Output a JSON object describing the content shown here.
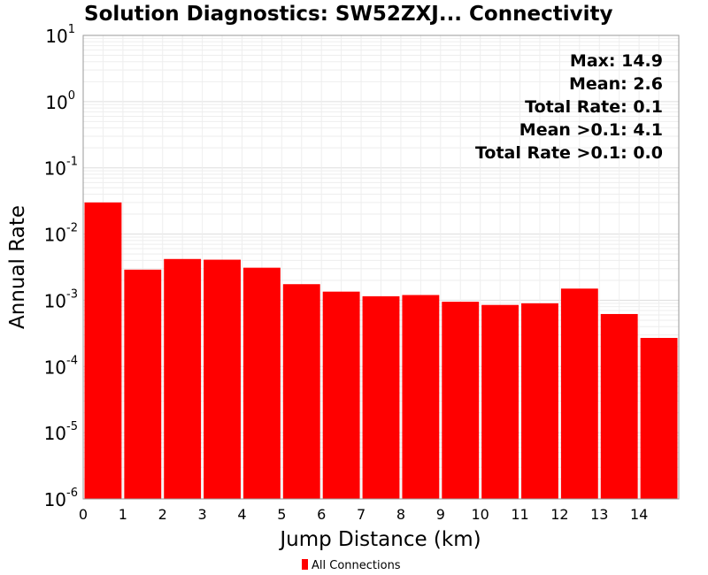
{
  "colors": {
    "bar": "#ff0000",
    "grid_major": "#dddddd",
    "grid_minor": "#eeeeee",
    "axis": "#999999"
  },
  "chart_data": {
    "type": "bar",
    "title": "Solution Diagnostics: SW52ZXJ... Connectivity",
    "xlabel": "Jump Distance (km)",
    "ylabel": "Annual Rate",
    "yscale": "log",
    "ylim": [
      1e-06,
      10
    ],
    "xlim": [
      0,
      15
    ],
    "grid": true,
    "x_ticks": [
      "0",
      "1",
      "2",
      "3",
      "4",
      "5",
      "6",
      "7",
      "8",
      "9",
      "10",
      "11",
      "12",
      "13",
      "14"
    ],
    "y_ticks": [
      {
        "base": "10",
        "exp": "1",
        "value": 10
      },
      {
        "base": "10",
        "exp": "0",
        "value": 1
      },
      {
        "base": "10",
        "exp": "-1",
        "value": 0.1
      },
      {
        "base": "10",
        "exp": "-2",
        "value": 0.01
      },
      {
        "base": "10",
        "exp": "-3",
        "value": 0.001
      },
      {
        "base": "10",
        "exp": "-4",
        "value": 0.0001
      },
      {
        "base": "10",
        "exp": "-5",
        "value": 1e-05
      },
      {
        "base": "10",
        "exp": "-6",
        "value": 1e-06
      }
    ],
    "bins": [
      {
        "x0": 0,
        "x1": 1,
        "value": 0.03
      },
      {
        "x0": 1,
        "x1": 2,
        "value": 0.0029
      },
      {
        "x0": 2,
        "x1": 3,
        "value": 0.0042
      },
      {
        "x0": 3,
        "x1": 4,
        "value": 0.0041
      },
      {
        "x0": 4,
        "x1": 5,
        "value": 0.0031
      },
      {
        "x0": 5,
        "x1": 6,
        "value": 0.00175
      },
      {
        "x0": 6,
        "x1": 7,
        "value": 0.00135
      },
      {
        "x0": 7,
        "x1": 8,
        "value": 0.00115
      },
      {
        "x0": 8,
        "x1": 9,
        "value": 0.0012
      },
      {
        "x0": 9,
        "x1": 10,
        "value": 0.00095
      },
      {
        "x0": 10,
        "x1": 11,
        "value": 0.00085
      },
      {
        "x0": 11,
        "x1": 12,
        "value": 0.0009
      },
      {
        "x0": 12,
        "x1": 13,
        "value": 0.0015
      },
      {
        "x0": 13,
        "x1": 14,
        "value": 0.00062
      },
      {
        "x0": 14,
        "x1": 15,
        "value": 0.00027
      }
    ],
    "annotations": [
      "Max: 14.9",
      "Mean: 2.6",
      "Total Rate: 0.1",
      "Mean >0.1: 4.1",
      "Total Rate >0.1: 0.0"
    ],
    "legend": {
      "placement": "bottom-center",
      "entries": [
        "All Connections"
      ]
    }
  }
}
